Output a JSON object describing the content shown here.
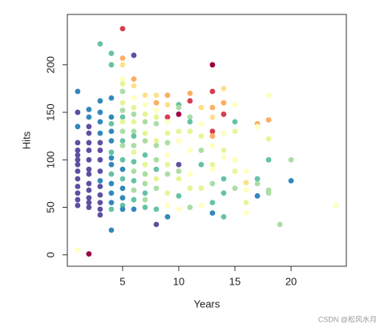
{
  "chart_data": {
    "type": "scatter",
    "x_label": "Years",
    "y_label": "Hits",
    "xlim": [
      0.08,
      24.92
    ],
    "ylim": [
      -12,
      253
    ],
    "xticks": [
      5,
      10,
      15,
      20
    ],
    "yticks": [
      0,
      50,
      100,
      150,
      200
    ],
    "grid": false,
    "x": [
      1,
      1,
      1,
      1,
      1,
      1,
      1,
      1,
      1,
      1,
      1,
      1,
      1,
      1,
      1,
      2,
      2,
      2,
      2,
      2,
      2,
      2,
      2,
      2,
      2,
      2,
      2,
      2,
      2,
      2,
      3,
      3,
      3,
      3,
      3,
      3,
      3,
      3,
      3,
      3,
      3,
      3,
      3,
      3,
      3,
      4,
      4,
      4,
      4,
      4,
      4,
      4,
      4,
      4,
      4,
      4,
      4,
      4,
      4,
      4,
      4,
      5,
      5,
      5,
      5,
      5,
      5,
      5,
      5,
      5,
      5,
      5,
      5,
      5,
      5,
      5,
      5,
      5,
      5,
      5,
      5,
      6,
      6,
      6,
      6,
      6,
      6,
      6,
      6,
      6,
      6,
      6,
      6,
      6,
      6,
      6,
      6,
      6,
      7,
      7,
      7,
      7,
      7,
      7,
      7,
      7,
      7,
      7,
      7,
      7,
      7,
      8,
      8,
      8,
      8,
      8,
      8,
      8,
      8,
      8,
      8,
      8,
      8,
      8,
      9,
      9,
      9,
      9,
      9,
      9,
      9,
      9,
      9,
      9,
      9,
      9,
      10,
      10,
      10,
      10,
      10,
      10,
      10,
      10,
      10,
      10,
      11,
      11,
      11,
      11,
      11,
      11,
      11,
      11,
      11,
      12,
      12,
      12,
      12,
      12,
      12,
      12,
      13,
      13,
      13,
      13,
      13,
      13,
      13,
      13,
      13,
      13,
      13,
      13,
      14,
      14,
      14,
      14,
      14,
      14,
      14,
      14,
      14,
      15,
      15,
      15,
      15,
      15,
      15,
      16,
      16,
      16,
      16,
      16,
      17,
      17,
      17,
      17,
      17,
      18,
      18,
      18,
      18,
      18,
      18,
      19,
      20,
      20,
      24
    ],
    "y": [
      172,
      150,
      135,
      118,
      110,
      105,
      100,
      95,
      88,
      80,
      72,
      65,
      58,
      52,
      5,
      153,
      145,
      135,
      128,
      118,
      110,
      100,
      90,
      85,
      75,
      68,
      60,
      55,
      50,
      1,
      222,
      162,
      150,
      140,
      128,
      118,
      110,
      100,
      88,
      78,
      72,
      63,
      55,
      48,
      42,
      212,
      200,
      165,
      145,
      138,
      130,
      120,
      108,
      102,
      95,
      85,
      75,
      65,
      55,
      48,
      26,
      238,
      207,
      200,
      185,
      180,
      172,
      160,
      152,
      145,
      140,
      130,
      120,
      115,
      100,
      90,
      80,
      70,
      60,
      52,
      48,
      210,
      185,
      178,
      165,
      155,
      148,
      140,
      130,
      125,
      115,
      108,
      98,
      88,
      78,
      68,
      58,
      48,
      168,
      158,
      148,
      140,
      128,
      120,
      105,
      95,
      85,
      75,
      65,
      58,
      50,
      168,
      160,
      152,
      145,
      138,
      120,
      115,
      100,
      90,
      80,
      70,
      48,
      32,
      168,
      158,
      145,
      140,
      128,
      118,
      105,
      95,
      85,
      65,
      52,
      40,
      158,
      155,
      148,
      130,
      120,
      95,
      88,
      80,
      62,
      48,
      170,
      162,
      145,
      140,
      130,
      110,
      85,
      70,
      50,
      155,
      138,
      125,
      110,
      95,
      70,
      52,
      200,
      172,
      155,
      145,
      130,
      125,
      115,
      95,
      90,
      75,
      55,
      44,
      175,
      160,
      148,
      128,
      110,
      103,
      80,
      65,
      40,
      158,
      140,
      130,
      100,
      88,
      70,
      88,
      76,
      68,
      55,
      44,
      138,
      135,
      80,
      75,
      62,
      168,
      142,
      122,
      100,
      68,
      65,
      32,
      100,
      78,
      52
    ],
    "colors": [
      "#3288BD",
      "#5E4FA2",
      "#3288BD",
      "#5E4FA2",
      "#5E4FA2",
      "#5E4FA2",
      "#5E4FA2",
      "#5E4FA2",
      "#5E4FA2",
      "#5E4FA2",
      "#5E4FA2",
      "#5E4FA2",
      "#5E4FA2",
      "#5E4FA2",
      "#FFFFBF",
      "#3288BD",
      "#3288BD",
      "#5E4FA2",
      "#5E4FA2",
      "#5E4FA2",
      "#5E4FA2",
      "#5E4FA2",
      "#5E4FA2",
      "#5E4FA2",
      "#5E4FA2",
      "#5E4FA2",
      "#5E4FA2",
      "#5E4FA2",
      "#5E4FA2",
      "#9E0142",
      "#66C2A5",
      "#3288BD",
      "#3288BD",
      "#3288BD",
      "#3288BD",
      "#5E4FA2",
      "#5E4FA2",
      "#5E4FA2",
      "#5E4FA2",
      "#3288BD",
      "#5E4FA2",
      "#5E4FA2",
      "#5E4FA2",
      "#5E4FA2",
      "#5E4FA2",
      "#66C2A5",
      "#66C2A5",
      "#3288BD",
      "#3288BD",
      "#66C2A5",
      "#3288BD",
      "#3288BD",
      "#66C2A5",
      "#3288BD",
      "#3288BD",
      "#66C2A5",
      "#3288BD",
      "#3288BD",
      "#3288BD",
      "#66C2A5",
      "#3288BD",
      "#D53E4F",
      "#FDAE61",
      "#FEE08B",
      "#FFFFBF",
      "#E6F598",
      "#ABDDA4",
      "#E6F598",
      "#ABDDA4",
      "#66C2A5",
      "#E6F598",
      "#ABDDA4",
      "#66C2A5",
      "#ABDDA4",
      "#66C2A5",
      "#3288BD",
      "#66C2A5",
      "#3288BD",
      "#3288BD",
      "#66C2A5",
      "#3288BD",
      "#5E4FA2",
      "#FDAE61",
      "#FEE08B",
      "#FFFFBF",
      "#E6F598",
      "#ABDDA4",
      "#E6F598",
      "#ABDDA4",
      "#66C2A5",
      "#ABDDA4",
      "#E6F598",
      "#66C2A5",
      "#ABDDA4",
      "#66C2A5",
      "#ABDDA4",
      "#66C2A5",
      "#3288BD",
      "#FEE08B",
      "#FFFFBF",
      "#E6F598",
      "#ABDDA4",
      "#E6F598",
      "#ABDDA4",
      "#66C2A5",
      "#E6F598",
      "#ABDDA4",
      "#ABDDA4",
      "#66C2A5",
      "#ABDDA4",
      "#66C2A5",
      "#FEE08B",
      "#FDAE61",
      "#FFFFBF",
      "#E6F598",
      "#ABDDA4",
      "#E6F598",
      "#ABDDA4",
      "#ABDDA4",
      "#66C2A5",
      "#E6F598",
      "#ABDDA4",
      "#66C2A5",
      "#5E4FA2",
      "#FDAE61",
      "#FEE08B",
      "#D53E4F",
      "#FFFFBF",
      "#E6F598",
      "#ABDDA4",
      "#FFFFBF",
      "#E6F598",
      "#ABDDA4",
      "#E6F598",
      "#FFFFBF",
      "#3288BD",
      "#66C2A5",
      "#ABDDA4",
      "#9E0142",
      "#E6F598",
      "#FFFFBF",
      "#5E4FA2",
      "#ABDDA4",
      "#E6F598",
      "#66C2A5",
      "#FFFFBF",
      "#FDAE61",
      "#D53E4F",
      "#ABDDA4",
      "#66C2A5",
      "#E6F598",
      "#FFFFBF",
      "#FFFFBF",
      "#E6F598",
      "#ABDDA4",
      "#FEE08B",
      "#FFFFBF",
      "#E6F598",
      "#ABDDA4",
      "#66C2A5",
      "#E6F598",
      "#FFFFBF",
      "#9E0142",
      "#D53E4F",
      "#FDAE61",
      "#FEE08B",
      "#D53E4F",
      "#FDAE61",
      "#FFFFBF",
      "#E6F598",
      "#FFFFBF",
      "#ABDDA4",
      "#66C2A5",
      "#3288BD",
      "#FEE08B",
      "#FDAE61",
      "#D53E4F",
      "#FFFFBF",
      "#E6F598",
      "#FFFFBF",
      "#66C2A5",
      "#66C2A5",
      "#66C2A5",
      "#FFFFBF",
      "#66C2A5",
      "#E6F598",
      "#FFFFBF",
      "#E6F598",
      "#ABDDA4",
      "#FFFFBF",
      "#FEE08B",
      "#FFFFBF",
      "#E6F598",
      "#FFFFBF",
      "#FDAE61",
      "#FFFFBF",
      "#66C2A5",
      "#ABDDA4",
      "#3288BD",
      "#FFFFBF",
      "#FDAE61",
      "#E6F598",
      "#66C2A5",
      "#ABDDA4",
      "#ABDDA4",
      "#ABDDA4",
      "#ABDDA4",
      "#3288BD",
      "#FFFFBF"
    ]
  },
  "watermark": "CSDN @松风水月"
}
